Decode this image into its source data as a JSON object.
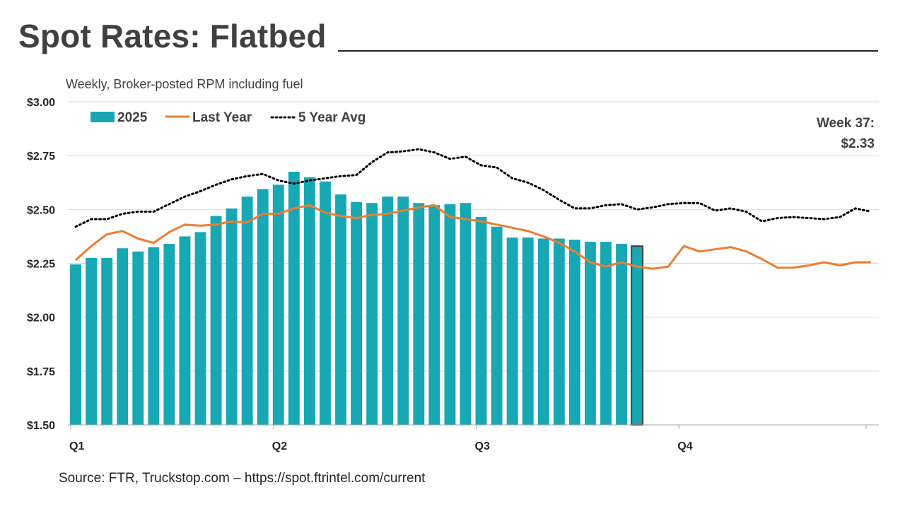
{
  "page": {
    "title": "Spot Rates: Flatbed",
    "subtitle": "Weekly, Broker-posted RPM including fuel",
    "source": "Source: FTR, Truckstop.com – https://spot.ftrintel.com/current"
  },
  "colors": {
    "bar": "#17A8B4",
    "bar_highlight_border": "#404040",
    "last_year": "#ED7D31",
    "avg5": "#000000",
    "grid": "#D9D9D9",
    "axis": "#A6A6A6"
  },
  "chart_data": {
    "type": "bar",
    "x_type": "week",
    "weeks_total": 52,
    "y_ticks": [
      "$3.00",
      "$2.75",
      "$2.50",
      "$2.25",
      "$2.00",
      "$1.75",
      "$1.50"
    ],
    "y_tick_values": [
      3.0,
      2.75,
      2.5,
      2.25,
      2.0,
      1.75,
      1.5
    ],
    "ylim": [
      1.5,
      3.0
    ],
    "x_tick_labels": [
      "Q1",
      "Q2",
      "Q3",
      "Q4"
    ],
    "x_tick_weeks": [
      1,
      14,
      27,
      40
    ],
    "grid": true,
    "legend_position": "top-left",
    "series": [
      {
        "name": "2025",
        "type": "bar",
        "values": [
          2.245,
          2.275,
          2.275,
          2.32,
          2.305,
          2.325,
          2.34,
          2.375,
          2.395,
          2.47,
          2.505,
          2.56,
          2.595,
          2.615,
          2.675,
          2.65,
          2.63,
          2.57,
          2.535,
          2.53,
          2.56,
          2.56,
          2.53,
          2.52,
          2.525,
          2.53,
          2.465,
          2.42,
          2.37,
          2.37,
          2.365,
          2.365,
          2.36,
          2.35,
          2.35,
          2.34,
          2.33
        ]
      },
      {
        "name": "Last Year",
        "type": "line",
        "values": [
          2.265,
          2.33,
          2.385,
          2.4,
          2.365,
          2.345,
          2.395,
          2.43,
          2.425,
          2.43,
          2.445,
          2.44,
          2.48,
          2.48,
          2.505,
          2.52,
          2.485,
          2.47,
          2.46,
          2.475,
          2.48,
          2.495,
          2.51,
          2.52,
          2.465,
          2.455,
          2.445,
          2.43,
          2.415,
          2.4,
          2.375,
          2.345,
          2.305,
          2.255,
          2.235,
          2.255,
          2.235,
          2.225,
          2.235,
          2.33,
          2.305,
          2.315,
          2.325,
          2.305,
          2.27,
          2.23,
          2.23,
          2.24,
          2.255,
          2.24,
          2.255,
          2.255
        ]
      },
      {
        "name": "5 Year Avg",
        "type": "line",
        "values": [
          2.42,
          2.455,
          2.455,
          2.48,
          2.49,
          2.49,
          2.525,
          2.56,
          2.585,
          2.615,
          2.64,
          2.655,
          2.665,
          2.635,
          2.62,
          2.635,
          2.645,
          2.655,
          2.66,
          2.72,
          2.765,
          2.77,
          2.78,
          2.765,
          2.735,
          2.745,
          2.705,
          2.695,
          2.645,
          2.625,
          2.59,
          2.545,
          2.505,
          2.505,
          2.52,
          2.525,
          2.5,
          2.51,
          2.525,
          2.53,
          2.53,
          2.495,
          2.505,
          2.49,
          2.445,
          2.46,
          2.465,
          2.46,
          2.455,
          2.465,
          2.505,
          2.49
        ]
      }
    ],
    "highlight": {
      "week": 37,
      "label_line1": "Week 37:",
      "label_line2": "$2.33"
    }
  }
}
